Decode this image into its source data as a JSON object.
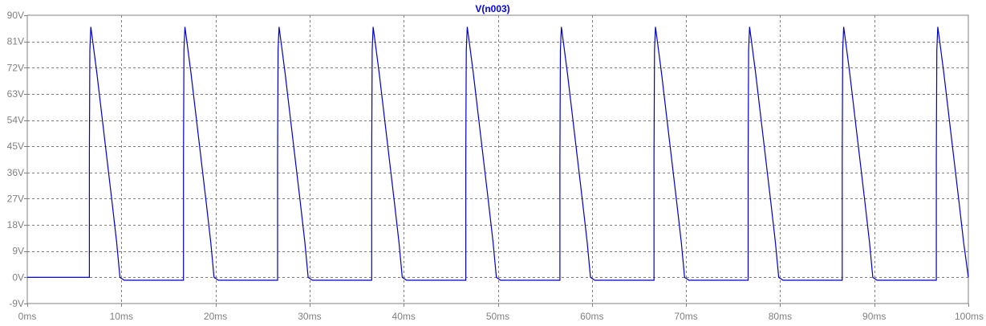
{
  "colors": {
    "background": "#ffffff",
    "frame": "#808080",
    "grid": "#808080",
    "tick_label": "#808080",
    "trace": "#0000cc",
    "title": "#0000ff"
  },
  "chart_data": {
    "type": "line",
    "title": "V(n003)",
    "xlabel": "",
    "ylabel": "",
    "xlim": [
      0,
      100
    ],
    "ylim": [
      -9,
      90
    ],
    "x_unit": "ms",
    "y_unit": "V",
    "grid": true,
    "x_ticks": [
      "0ms",
      "10ms",
      "20ms",
      "30ms",
      "40ms",
      "50ms",
      "60ms",
      "70ms",
      "80ms",
      "90ms",
      "100ms"
    ],
    "y_ticks": [
      "-9V",
      "0V",
      "9V",
      "18V",
      "27V",
      "36V",
      "45V",
      "54V",
      "63V",
      "72V",
      "81V",
      "90V"
    ],
    "x_tick_values": [
      0,
      10,
      20,
      30,
      40,
      50,
      60,
      70,
      80,
      90,
      100
    ],
    "y_tick_values": [
      -9,
      0,
      9,
      18,
      27,
      36,
      45,
      54,
      63,
      72,
      81,
      90
    ],
    "series": [
      {
        "name": "V(n003)",
        "x": [
          0,
          6.6,
          6.6,
          6.65,
          6.75,
          7.0,
          7.4,
          7.8,
          8.2,
          8.6,
          9.0,
          9.5,
          9.85,
          10.3,
          16.6,
          16.6,
          16.65,
          16.75,
          17.0,
          17.4,
          17.8,
          18.2,
          18.6,
          19.0,
          19.5,
          19.85,
          20.3,
          26.6,
          26.6,
          26.65,
          26.75,
          27.0,
          27.4,
          27.8,
          28.2,
          28.6,
          29.0,
          29.5,
          29.85,
          30.3,
          36.6,
          36.6,
          36.65,
          36.75,
          37.0,
          37.4,
          37.8,
          38.2,
          38.6,
          39.0,
          39.5,
          39.85,
          40.3,
          46.6,
          46.6,
          46.65,
          46.75,
          47.0,
          47.4,
          47.8,
          48.2,
          48.6,
          49.0,
          49.5,
          49.85,
          50.3,
          56.6,
          56.6,
          56.65,
          56.75,
          57.0,
          57.4,
          57.8,
          58.2,
          58.6,
          59.0,
          59.5,
          59.85,
          60.3,
          66.6,
          66.6,
          66.65,
          66.75,
          67.0,
          67.4,
          67.8,
          68.2,
          68.6,
          69.0,
          69.5,
          69.85,
          70.3,
          76.6,
          76.6,
          76.65,
          76.75,
          77.0,
          77.4,
          77.8,
          78.2,
          78.6,
          79.0,
          79.5,
          79.85,
          80.3,
          86.6,
          86.6,
          86.65,
          86.75,
          87.0,
          87.4,
          87.8,
          88.2,
          88.6,
          89.0,
          89.5,
          89.85,
          90.3,
          96.6,
          96.6,
          96.65,
          96.75,
          97.0,
          97.4,
          97.8,
          98.2,
          98.6,
          99.0,
          99.5,
          100
        ],
        "y": [
          0,
          0,
          42,
          78,
          86,
          80,
          70,
          59,
          48,
          37,
          26,
          12,
          0,
          -1,
          -1,
          42,
          78,
          86,
          80,
          70,
          59,
          48,
          37,
          26,
          12,
          0,
          -1,
          -1,
          42,
          78,
          86,
          80,
          70,
          59,
          48,
          37,
          26,
          12,
          0,
          -1,
          -1,
          42,
          78,
          86,
          80,
          70,
          59,
          48,
          37,
          26,
          12,
          0,
          -1,
          -1,
          42,
          78,
          86,
          80,
          70,
          59,
          48,
          37,
          26,
          12,
          0,
          -1,
          -1,
          42,
          78,
          86,
          80,
          70,
          59,
          48,
          37,
          26,
          12,
          0,
          -1,
          -1,
          42,
          78,
          86,
          80,
          70,
          59,
          48,
          37,
          26,
          12,
          0,
          -1,
          -1,
          42,
          78,
          86,
          80,
          70,
          59,
          48,
          37,
          26,
          12,
          0,
          -1,
          -1,
          42,
          78,
          86,
          80,
          70,
          59,
          48,
          37,
          26,
          12,
          0,
          -1,
          -1,
          42,
          78,
          86,
          80,
          70,
          59,
          48,
          37,
          26,
          12,
          0
        ]
      }
    ]
  }
}
